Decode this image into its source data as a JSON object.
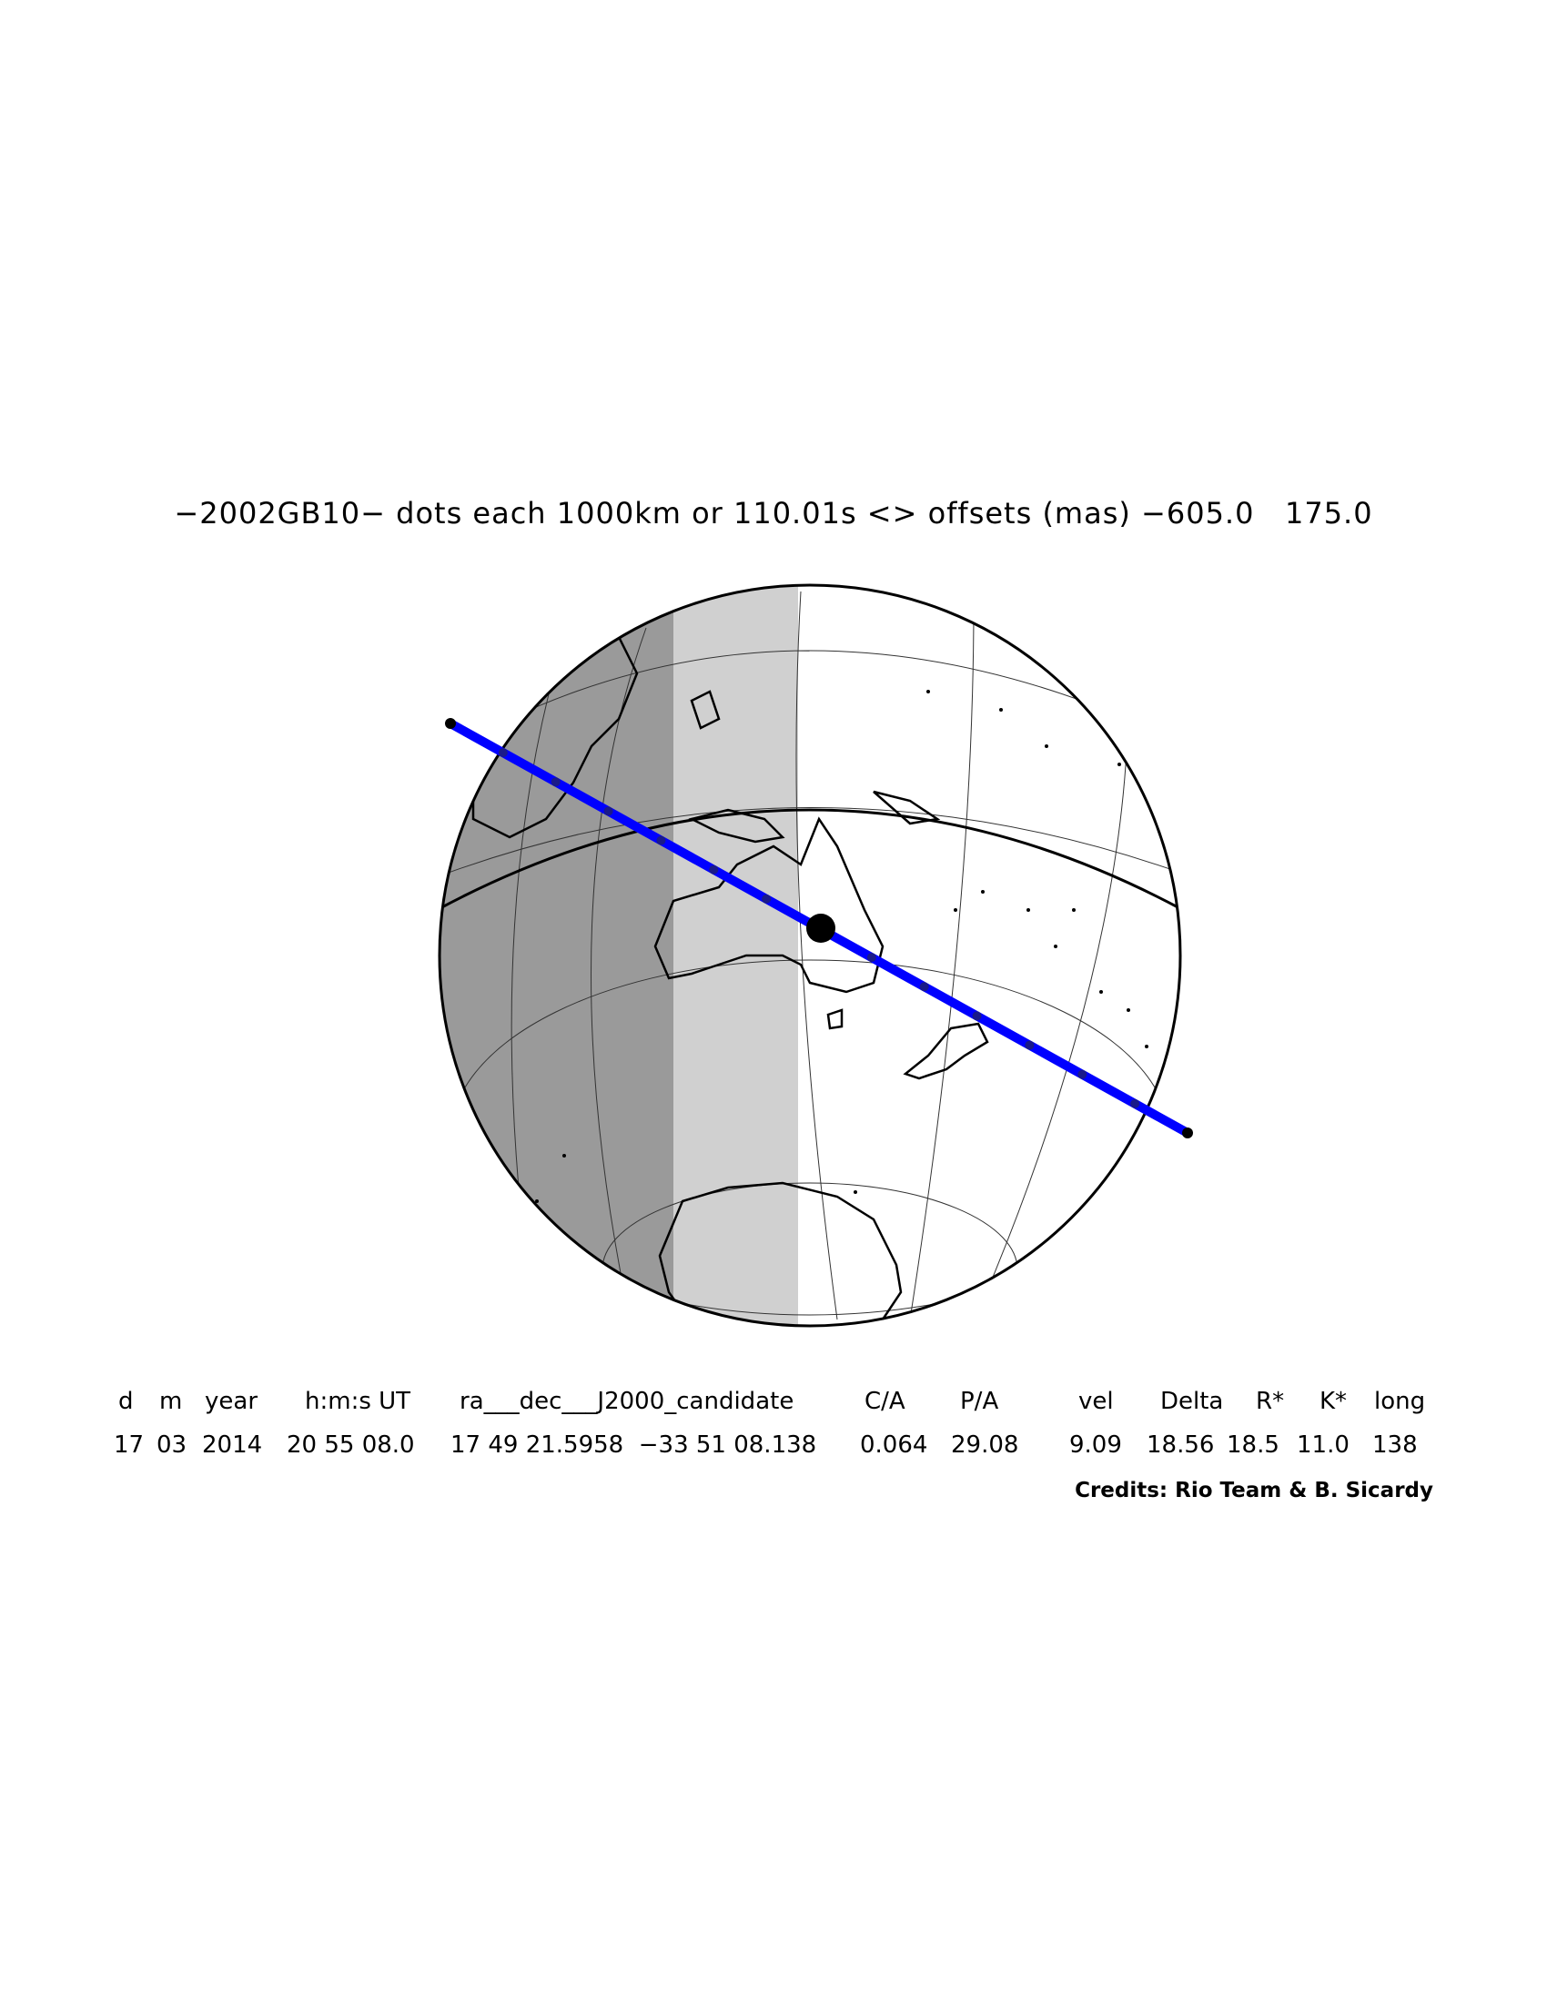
{
  "title": "−2002GB10− dots each 1000km or 110.01s <> offsets (mas) −605.0   175.0",
  "table": {
    "headers": [
      "d",
      "m",
      "year",
      "h:m:s UT",
      "ra___dec___J2000_candidate",
      "C/A",
      "P/A",
      "vel",
      "Delta",
      "R*",
      "K*",
      "long"
    ],
    "values": [
      "17",
      "03",
      "2014",
      "20 55 08.0",
      "17 49 21.5958  −33 51 08.138",
      "0.064",
      "29.08",
      "9.09",
      "18.56",
      "18.5",
      "11.0",
      "138"
    ]
  },
  "credits": "Credits: Rio Team & B. Sicardy",
  "colors": {
    "night": "#9a9a9a",
    "twilight": "#d0d0d0",
    "day": "#ffffff",
    "path": "#0000ff",
    "dot": "#000000"
  },
  "path_dot_count": 15
}
